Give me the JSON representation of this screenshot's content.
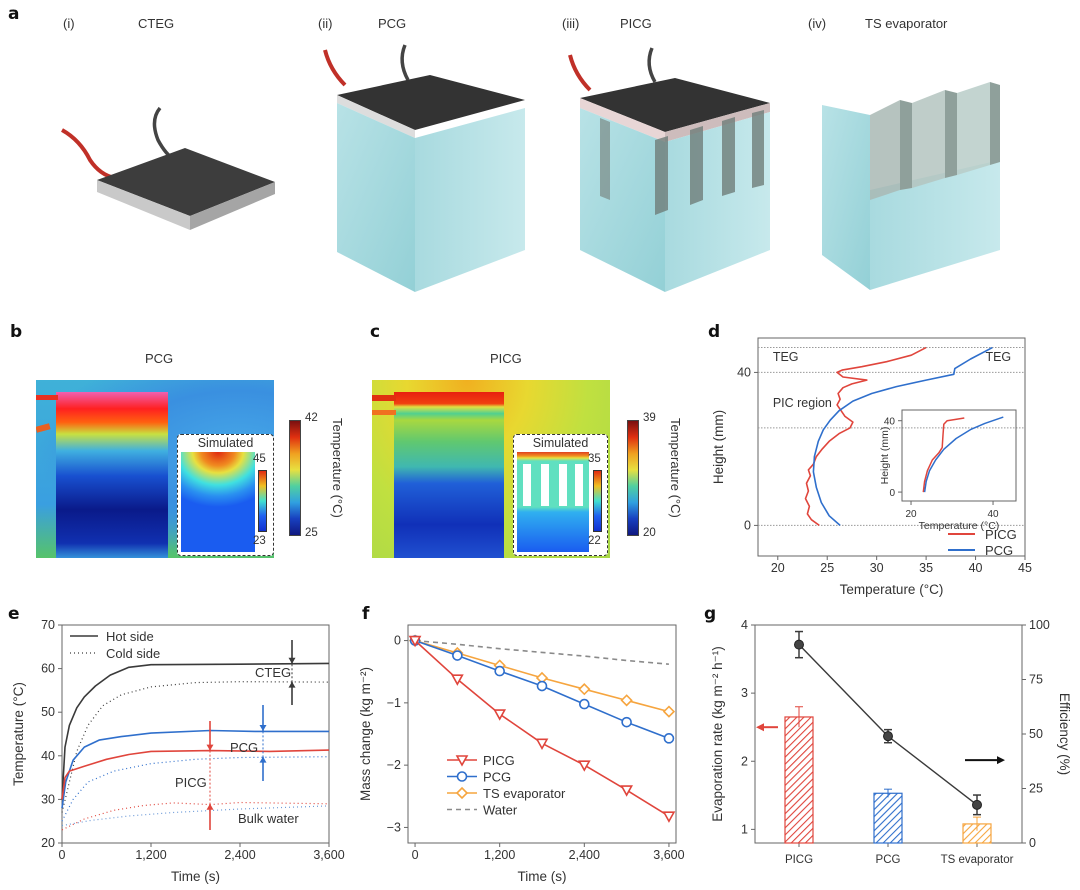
{
  "panel_a": {
    "label": "a",
    "items": [
      {
        "index": "(i)",
        "title": "CTEG"
      },
      {
        "index": "(ii)",
        "title": "PCG"
      },
      {
        "index": "(iii)",
        "title": "PICG"
      },
      {
        "index": "(iv)",
        "title": "TS evaporator"
      }
    ]
  },
  "panel_b": {
    "label": "b",
    "title": "PCG",
    "inset_title": "Simulated",
    "colorbar": {
      "max": "42",
      "min": "25",
      "label": "Temperature (°C)"
    },
    "inset_colorbar": {
      "max": "45",
      "min": "23"
    }
  },
  "panel_c": {
    "label": "c",
    "title": "PICG",
    "inset_title": "Simulated",
    "colorbar": {
      "max": "39",
      "min": "20",
      "label": "Temperature (°C)"
    },
    "inset_colorbar": {
      "max": "35",
      "min": "22"
    }
  },
  "colors": {
    "red": "#e0453c",
    "blue": "#2f6fcc",
    "orange": "#f6a53f",
    "gray": "#8a8a8a",
    "dark": "#3a3a3a"
  },
  "chart_data": [
    {
      "panel": "d",
      "type": "line",
      "xlabel": "Temperature (°C)",
      "ylabel": "Height (mm)",
      "xlim": [
        18,
        45
      ],
      "ylim": [
        -8,
        49
      ],
      "xticks": [
        20,
        25,
        30,
        35,
        40,
        45
      ],
      "xtick_labels": [
        "20",
        "25",
        "30",
        "35",
        "40",
        "45"
      ],
      "yticks": [
        0,
        40
      ],
      "ytick_labels": [
        "0",
        "40"
      ],
      "reference_lines": [
        46.5,
        40,
        25.5,
        0
      ],
      "annotations": [
        {
          "text": "TEG",
          "x": 19.5,
          "y": 43
        },
        {
          "text": "TEG",
          "x": 42.3,
          "y": 43
        },
        {
          "text": "PIC region",
          "x": 19.5,
          "y": 31
        }
      ],
      "legend": "bottom-right",
      "series": [
        {
          "name": "PICG",
          "color": "#e0453c",
          "points": [
            [
              24.2,
              0
            ],
            [
              23.4,
              1.5
            ],
            [
              23.0,
              3
            ],
            [
              23.2,
              5
            ],
            [
              22.8,
              7
            ],
            [
              23.1,
              9
            ],
            [
              22.9,
              11
            ],
            [
              23.3,
              13
            ],
            [
              23.1,
              14.5
            ],
            [
              23.6,
              16
            ],
            [
              23.9,
              18
            ],
            [
              24.5,
              20
            ],
            [
              25.2,
              22
            ],
            [
              26.2,
              24
            ],
            [
              27.3,
              25.5
            ],
            [
              27.6,
              27
            ],
            [
              26.8,
              28.5
            ],
            [
              26.4,
              30
            ],
            [
              26.0,
              31.5
            ],
            [
              26.3,
              33
            ],
            [
              26.1,
              34.5
            ],
            [
              26.6,
              36
            ],
            [
              27.5,
              37
            ],
            [
              29.0,
              38
            ],
            [
              26.6,
              38.8
            ],
            [
              26.0,
              40
            ],
            [
              26.5,
              40.6
            ],
            [
              28.5,
              41.5
            ],
            [
              31.0,
              42.8
            ],
            [
              33.5,
              44.5
            ],
            [
              35.0,
              46.5
            ]
          ]
        },
        {
          "name": "PCG",
          "color": "#2f6fcc",
          "points": [
            [
              26.3,
              0
            ],
            [
              25.2,
              2.5
            ],
            [
              24.4,
              6
            ],
            [
              23.9,
              10
            ],
            [
              23.6,
              14
            ],
            [
              23.7,
              18
            ],
            [
              24.1,
              22
            ],
            [
              24.6,
              25
            ],
            [
              25.3,
              27.5
            ],
            [
              26.2,
              30
            ],
            [
              27.6,
              32.5
            ],
            [
              29.5,
              34.5
            ],
            [
              32.0,
              36.3
            ],
            [
              35.0,
              38
            ],
            [
              37.8,
              39.5
            ],
            [
              37.9,
              41
            ],
            [
              39.5,
              43.5
            ],
            [
              41.7,
              46.5
            ]
          ]
        }
      ],
      "inset": {
        "xlabel": "Temperature (°C)",
        "ylabel": "Height (mm)",
        "xlim": [
          17.8,
          45.6
        ],
        "ylim": [
          -5,
          46
        ],
        "xticks": [
          20,
          40
        ],
        "xtick_labels": [
          "20",
          "40"
        ],
        "yticks": [
          0,
          40
        ],
        "ytick_labels": [
          "0",
          "40"
        ],
        "series": [
          {
            "name": "PICG",
            "color": "#e0453c",
            "points": [
              [
                23.0,
                0
              ],
              [
                23.3,
                6
              ],
              [
                24.0,
                12
              ],
              [
                25.2,
                18
              ],
              [
                26.8,
                22
              ],
              [
                27.6,
                25
              ],
              [
                27.8,
                32
              ],
              [
                28.0,
                38
              ],
              [
                28.8,
                40
              ],
              [
                33.0,
                41.5
              ]
            ]
          },
          {
            "name": "PCG",
            "color": "#2f6fcc",
            "points": [
              [
                23.3,
                0
              ],
              [
                23.7,
                6
              ],
              [
                24.5,
                12
              ],
              [
                26.0,
                18
              ],
              [
                28.0,
                24
              ],
              [
                31.0,
                30
              ],
              [
                34.5,
                35
              ],
              [
                38.0,
                38.5
              ],
              [
                42.5,
                42
              ]
            ]
          }
        ]
      }
    },
    {
      "panel": "e",
      "type": "line",
      "xlabel": "Time (s)",
      "ylabel": "Temperature (°C)",
      "xlim": [
        0,
        3600
      ],
      "ylim": [
        20,
        70
      ],
      "xticks": [
        0,
        1200,
        2400,
        3600
      ],
      "xtick_labels": [
        "0",
        "1,200",
        "2,400",
        "3,600"
      ],
      "yticks": [
        20,
        30,
        40,
        50,
        60,
        70
      ],
      "ytick_labels": [
        "20",
        "30",
        "40",
        "50",
        "60",
        "70"
      ],
      "legend_entries": [
        {
          "label": "Hot side",
          "style": "solid"
        },
        {
          "label": "Cold side",
          "style": "dotted"
        }
      ],
      "legend": "top-left",
      "annotations": [
        "CTEG",
        "PCG",
        "PICG",
        "Bulk water"
      ],
      "series": [
        {
          "group": "CTEG",
          "side": "Hot side",
          "color": "#3a3a3a",
          "style": "solid",
          "points": [
            [
              0,
              30
            ],
            [
              40,
              42
            ],
            [
              100,
              47
            ],
            [
              200,
              51
            ],
            [
              300,
              53.5
            ],
            [
              450,
              56
            ],
            [
              650,
              58.5
            ],
            [
              900,
              60.3
            ],
            [
              1200,
              60.9
            ],
            [
              2400,
              61
            ],
            [
              3600,
              61.2
            ]
          ]
        },
        {
          "group": "CTEG",
          "side": "Cold side",
          "color": "#3a3a3a",
          "style": "dotted",
          "points": [
            [
              0,
              27
            ],
            [
              100,
              34
            ],
            [
              200,
              41
            ],
            [
              350,
              47
            ],
            [
              550,
              51.5
            ],
            [
              800,
              54
            ],
            [
              1200,
              55.8
            ],
            [
              1800,
              56.8
            ],
            [
              2400,
              57
            ],
            [
              3600,
              56.9
            ]
          ]
        },
        {
          "group": "PCG",
          "side": "Hot side",
          "color": "#2f6fcc",
          "style": "solid",
          "points": [
            [
              0,
              28
            ],
            [
              50,
              34
            ],
            [
              150,
              39
            ],
            [
              300,
              42
            ],
            [
              500,
              43.6
            ],
            [
              800,
              44.4
            ],
            [
              1200,
              45.2
            ],
            [
              2000,
              45.8
            ],
            [
              2600,
              45.6
            ],
            [
              3600,
              45.6
            ]
          ]
        },
        {
          "group": "PCG",
          "side": "Cold side",
          "color": "#2f6fcc",
          "style": "dotted",
          "points": [
            [
              0,
              25
            ],
            [
              150,
              30
            ],
            [
              350,
              34
            ],
            [
              700,
              36.5
            ],
            [
              1200,
              38.2
            ],
            [
              1800,
              39.2
            ],
            [
              2400,
              39.6
            ],
            [
              3600,
              39.8
            ]
          ]
        },
        {
          "group": "PICG",
          "side": "Hot side",
          "color": "#e0453c",
          "style": "solid",
          "points": [
            [
              0,
              30
            ],
            [
              40,
              35
            ],
            [
              100,
              36.5
            ],
            [
              300,
              37.6
            ],
            [
              600,
              39.2
            ],
            [
              900,
              40.3
            ],
            [
              1200,
              41
            ],
            [
              2000,
              41.2
            ],
            [
              2800,
              41
            ],
            [
              3600,
              41.3
            ]
          ]
        },
        {
          "group": "PICG",
          "side": "Cold side",
          "color": "#e0453c",
          "style": "dotted",
          "points": [
            [
              0,
              23
            ],
            [
              300,
              25.5
            ],
            [
              700,
              27.5
            ],
            [
              1100,
              28.6
            ],
            [
              1500,
              29.2
            ],
            [
              2000,
              28.8
            ],
            [
              2400,
              29.3
            ],
            [
              3600,
              29
            ]
          ]
        },
        {
          "group": "Bulk water",
          "side": "Cold side",
          "color": "#6c9ad8",
          "style": "dotted",
          "points": [
            [
              0,
              24
            ],
            [
              400,
              25.2
            ],
            [
              900,
              26.2
            ],
            [
              1500,
              27
            ],
            [
              2400,
              27.8
            ],
            [
              3600,
              28.5
            ]
          ]
        }
      ]
    },
    {
      "panel": "f",
      "type": "line",
      "xlabel": "Time (s)",
      "ylabel": "Mass change (kg m⁻²)",
      "xlim": [
        -100,
        3700
      ],
      "ylim": [
        -3.25,
        0.25
      ],
      "xticks": [
        0,
        1200,
        2400,
        3600
      ],
      "xtick_labels": [
        "0",
        "1,200",
        "2,400",
        "3,600"
      ],
      "yticks": [
        0,
        -1,
        -2,
        -3
      ],
      "ytick_labels": [
        "0",
        "−1",
        "−2",
        "−3"
      ],
      "legend": "bottom-left",
      "x": [
        0,
        600,
        1200,
        1800,
        2400,
        3000,
        3600
      ],
      "series": [
        {
          "name": "PICG",
          "color": "#e0453c",
          "marker": "triangle-down",
          "values": [
            0,
            -0.62,
            -1.18,
            -1.65,
            -2.0,
            -2.4,
            -2.82
          ]
        },
        {
          "name": "PCG",
          "color": "#2f6fcc",
          "marker": "circle",
          "values": [
            0,
            -0.24,
            -0.49,
            -0.73,
            -1.02,
            -1.31,
            -1.57
          ]
        },
        {
          "name": "TS evaporator",
          "color": "#f6a53f",
          "marker": "diamond",
          "values": [
            0,
            -0.2,
            -0.4,
            -0.6,
            -0.78,
            -0.96,
            -1.14
          ]
        },
        {
          "name": "Water",
          "color": "#8a8a8a",
          "marker": "none",
          "style": "dashed",
          "values": [
            0,
            -0.06,
            -0.13,
            -0.19,
            -0.25,
            -0.32,
            -0.38
          ]
        }
      ]
    },
    {
      "panel": "g",
      "type": "bar",
      "categories": [
        "PICG",
        "PCG",
        "TS evaporator"
      ],
      "ylabel": "Evaporation rate (kg m⁻² h⁻¹)",
      "ylim": [
        0.8,
        4
      ],
      "yticks": [
        1,
        2,
        3,
        4
      ],
      "ytick_labels": [
        "1",
        "2",
        "3",
        "4"
      ],
      "y2label": "Efficiency (%)",
      "y2lim": [
        0,
        100
      ],
      "y2ticks": [
        0,
        25,
        50,
        75,
        100
      ],
      "y2tick_labels": [
        "0",
        "25",
        "50",
        "75",
        "100"
      ],
      "bars": {
        "values": [
          2.65,
          1.53,
          1.08
        ],
        "errors": [
          0.15,
          0.06,
          0.1
        ],
        "colors": [
          "#e0453c",
          "#2f6fcc",
          "#f6a53f"
        ],
        "fill": "hatched"
      },
      "efficiency": {
        "values": [
          91,
          49,
          17.5
        ],
        "errors": [
          6,
          3,
          4.5
        ],
        "color": "#3a3a3a"
      },
      "axis_arrows": [
        {
          "axis": "left",
          "color": "#e0453c",
          "at": 2.5
        },
        {
          "axis": "right",
          "color": "#111111",
          "at": 38
        }
      ]
    }
  ]
}
